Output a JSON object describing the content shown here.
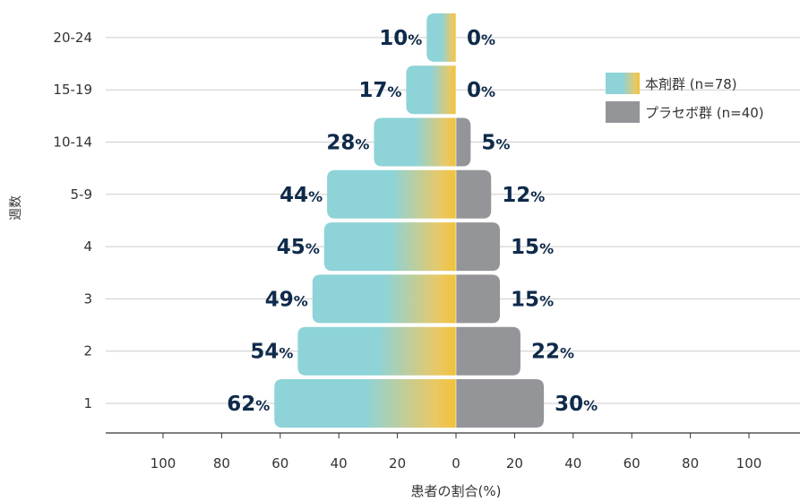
{
  "chart_data": {
    "type": "bar",
    "orientation": "horizontal-diverging",
    "categories": [
      "1",
      "2",
      "3",
      "4",
      "5-9",
      "10-14",
      "15-19",
      "20-24"
    ],
    "series": [
      {
        "name": "本剤群 (n=78)",
        "side": "left",
        "values": [
          62,
          54,
          49,
          45,
          44,
          28,
          17,
          10
        ],
        "color": "#8dd3d8",
        "accent": "#f0c23a"
      },
      {
        "name": "プラセボ群 (n=40)",
        "side": "right",
        "values": [
          30,
          22,
          15,
          15,
          12,
          5,
          0,
          0
        ],
        "color": "#939598"
      }
    ],
    "value_suffix": "%",
    "ylabel": "週数",
    "xlabel": "患者の割合(%)",
    "xlim": [
      -120,
      120
    ],
    "xticks": [
      -100,
      -80,
      -60,
      -40,
      -20,
      0,
      20,
      40,
      60,
      80,
      100
    ],
    "xtick_labels": [
      "100",
      "80",
      "60",
      "40",
      "20",
      "0",
      "20",
      "40",
      "60",
      "80",
      "100"
    ],
    "grid": "horizontal",
    "legend_position": "top-right",
    "colors": {
      "grid": "#cccccc",
      "axis": "#333333",
      "label": "#0f2a4a"
    }
  }
}
